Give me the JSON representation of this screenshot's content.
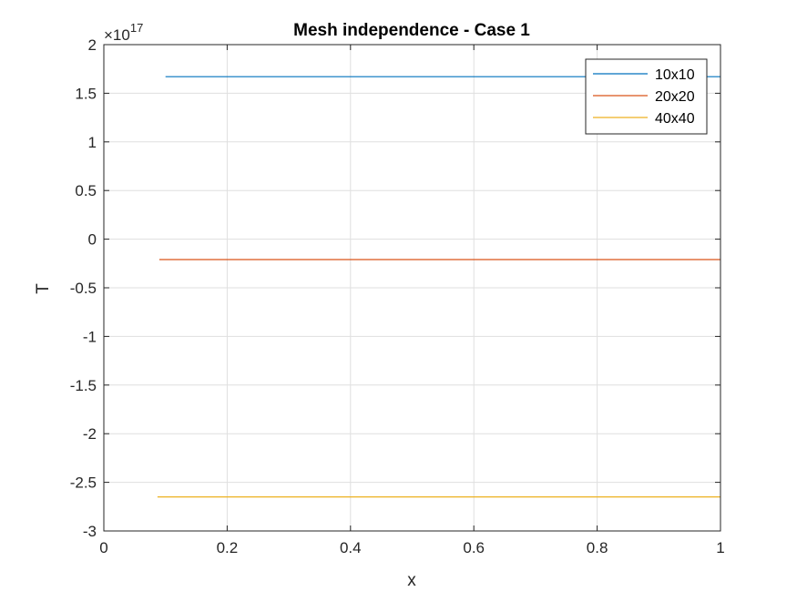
{
  "chart_data": {
    "type": "line",
    "title": "Mesh independence - Case 1",
    "xlabel": "x",
    "ylabel": "T",
    "xlim": [
      0,
      1
    ],
    "ylim": [
      -3,
      2
    ],
    "y_exponent_label": "×10",
    "y_exponent": "17",
    "xticks": [
      0,
      0.2,
      0.4,
      0.6,
      0.8,
      1
    ],
    "xtick_labels": [
      "0",
      "0.2",
      "0.4",
      "0.6",
      "0.8",
      "1"
    ],
    "yticks": [
      -3,
      -2.5,
      -2,
      -1.5,
      -1,
      -0.5,
      0,
      0.5,
      1,
      1.5,
      2
    ],
    "ytick_labels": [
      "-3",
      "-2.5",
      "-2",
      "-1.5",
      "-1",
      "-0.5",
      "0",
      "0.5",
      "1",
      "1.5",
      "2"
    ],
    "grid": true,
    "legend_position": "top-right",
    "series": [
      {
        "name": "10x10",
        "color": "#0072BD",
        "x": [
          0.1,
          1.0
        ],
        "y": [
          1.67,
          1.67
        ]
      },
      {
        "name": "20x20",
        "color": "#D95319",
        "x": [
          0.09,
          1.0
        ],
        "y": [
          -0.21,
          -0.21
        ]
      },
      {
        "name": "40x40",
        "color": "#EDB120",
        "x": [
          0.087,
          1.0
        ],
        "y": [
          -2.65,
          -2.65
        ]
      }
    ]
  }
}
